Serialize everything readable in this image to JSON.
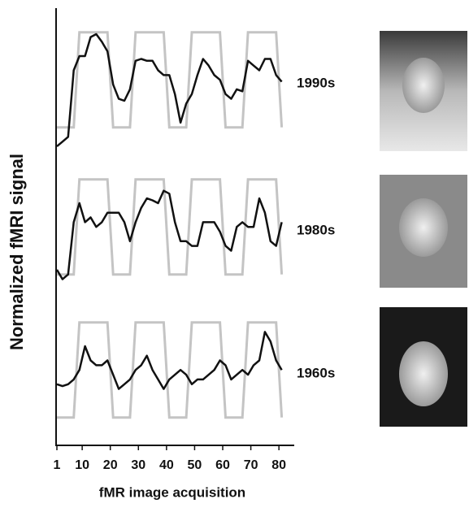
{
  "chart_data": {
    "type": "line",
    "x_label": "fMR image acquisition",
    "y_label": "Normalized fMRI signal",
    "x": [
      1,
      3,
      5,
      7,
      9,
      11,
      13,
      15,
      17,
      19,
      21,
      23,
      25,
      27,
      29,
      31,
      33,
      35,
      37,
      39,
      41,
      43,
      45,
      47,
      49,
      51,
      53,
      55,
      57,
      59,
      61,
      63,
      65,
      67,
      69,
      71,
      73,
      75,
      77,
      79,
      81
    ],
    "xlim": [
      1,
      84
    ],
    "xticks": [
      1,
      10,
      20,
      30,
      40,
      50,
      60,
      70,
      80
    ],
    "ylim": [
      -0.25,
      1.1
    ],
    "reference": {
      "color": "#c4c4c4",
      "values": [
        0,
        0,
        0,
        0,
        1,
        1,
        1,
        1,
        1,
        1,
        0,
        0,
        0,
        0,
        1,
        1,
        1,
        1,
        1,
        1,
        0,
        0,
        0,
        0,
        1,
        1,
        1,
        1,
        1,
        1,
        0,
        0,
        0,
        0,
        1,
        1,
        1,
        1,
        1,
        1,
        0
      ]
    },
    "series": [
      {
        "name": "1990s",
        "color": "#111111",
        "values": [
          -0.2,
          -0.15,
          -0.1,
          0.6,
          0.75,
          0.75,
          0.95,
          0.98,
          0.9,
          0.8,
          0.45,
          0.3,
          0.28,
          0.4,
          0.7,
          0.72,
          0.7,
          0.7,
          0.6,
          0.55,
          0.55,
          0.35,
          0.05,
          0.25,
          0.35,
          0.55,
          0.72,
          0.65,
          0.55,
          0.5,
          0.35,
          0.3,
          0.4,
          0.38,
          0.7,
          0.65,
          0.6,
          0.72,
          0.72,
          0.55,
          0.48
        ]
      },
      {
        "name": "1980s",
        "color": "#111111",
        "values": [
          0.05,
          -0.05,
          0.0,
          0.55,
          0.75,
          0.55,
          0.6,
          0.5,
          0.55,
          0.65,
          0.65,
          0.65,
          0.55,
          0.35,
          0.55,
          0.7,
          0.8,
          0.78,
          0.75,
          0.88,
          0.85,
          0.55,
          0.35,
          0.35,
          0.3,
          0.3,
          0.55,
          0.55,
          0.55,
          0.45,
          0.3,
          0.25,
          0.5,
          0.55,
          0.5,
          0.5,
          0.8,
          0.65,
          0.35,
          0.3,
          0.55
        ]
      },
      {
        "name": "1960s",
        "color": "#111111",
        "values": [
          0.35,
          0.33,
          0.35,
          0.4,
          0.5,
          0.75,
          0.6,
          0.55,
          0.55,
          0.6,
          0.45,
          0.3,
          0.35,
          0.4,
          0.5,
          0.55,
          0.65,
          0.5,
          0.4,
          0.3,
          0.4,
          0.45,
          0.5,
          0.45,
          0.35,
          0.4,
          0.4,
          0.45,
          0.5,
          0.6,
          0.55,
          0.4,
          0.45,
          0.5,
          0.45,
          0.55,
          0.6,
          0.9,
          0.8,
          0.6,
          0.5
        ]
      }
    ]
  }
}
